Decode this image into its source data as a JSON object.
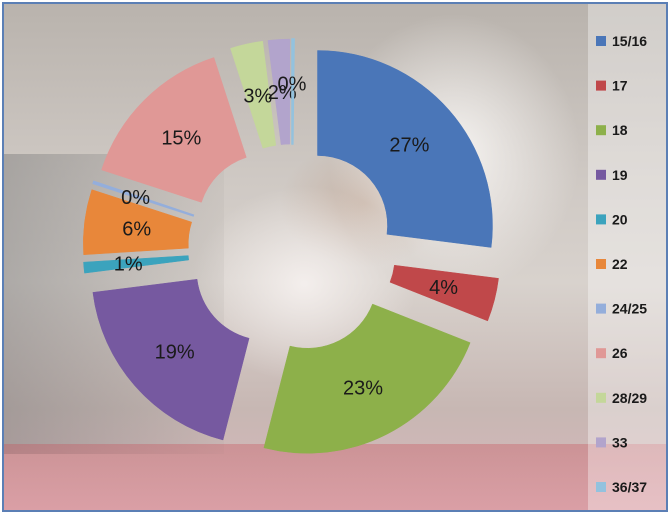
{
  "chart_data": {
    "type": "pie",
    "exploded": true,
    "doughnut": true,
    "legend_position": "right",
    "categories": [
      "15/16",
      "17",
      "18",
      "19",
      "20",
      "22",
      "24/25",
      "26",
      "28/29",
      "33",
      "36/37"
    ],
    "values": [
      27,
      4,
      23,
      19,
      1,
      6,
      0,
      15,
      3,
      2,
      0
    ],
    "labels": [
      "27%",
      "4%",
      "23%",
      "19%",
      "1%",
      "6%",
      "0%",
      "15%",
      "3%",
      "2%",
      "0%"
    ],
    "colors": [
      "#4a76b8",
      "#c0484a",
      "#8db04a",
      "#7659a0",
      "#3ba3bd",
      "#e8873a",
      "#94aedb",
      "#e09896",
      "#c4d79a",
      "#b2a4cc",
      "#93c2de"
    ]
  }
}
